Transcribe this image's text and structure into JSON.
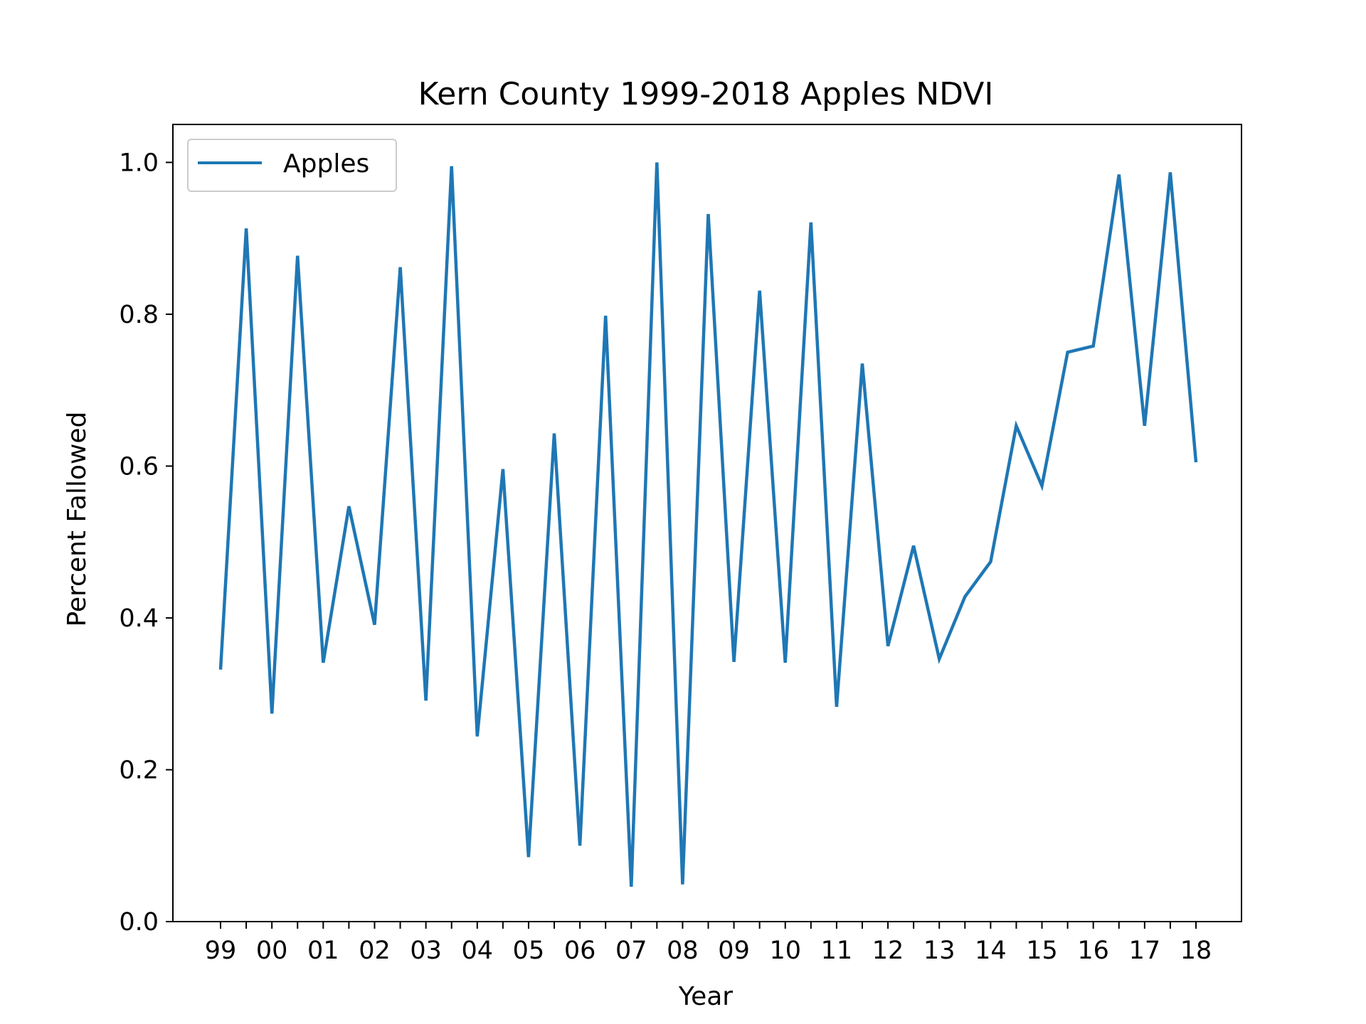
{
  "chart_data": {
    "type": "line",
    "title": "Kern County 1999-2018 Apples NDVI",
    "xlabel": "Year",
    "ylabel": "Percent Fallowed",
    "categories": [
      "99",
      "00",
      "01",
      "02",
      "03",
      "04",
      "05",
      "06",
      "07",
      "08",
      "09",
      "10",
      "11",
      "12",
      "13",
      "14",
      "15",
      "16",
      "17",
      "18"
    ],
    "ylim": [
      0,
      1.05
    ],
    "yticks": [
      "0.0",
      "0.2",
      "0.4",
      "0.6",
      "0.8",
      "1.0"
    ],
    "ytick_values": [
      0,
      0.2,
      0.4,
      0.6,
      0.8,
      1.0
    ],
    "legend": {
      "position": "top-left",
      "entries": [
        "Apples"
      ]
    },
    "grid": false,
    "series": [
      {
        "name": "Apples",
        "color": "#1f77b4",
        "x": [
          99,
          99.5,
          2000,
          2000.5,
          2001,
          2001.5,
          2002,
          2002.5,
          2003,
          2003.5,
          2004,
          2004.5,
          2005,
          2005.5,
          2006,
          2006.5,
          2007,
          2007.5,
          2008,
          2008.5,
          2009,
          2009.5,
          2010,
          2010.5,
          2011,
          2011.5,
          2012,
          2012.5,
          2013,
          2013.5,
          2014,
          2014.5,
          2015,
          2015.5,
          2016,
          2016.5,
          2017,
          2017.5,
          2018
        ],
        "values": [
          0.332,
          0.913,
          0.274,
          0.877,
          0.341,
          0.547,
          0.391,
          0.862,
          0.291,
          0.995,
          0.244,
          0.596,
          0.085,
          0.643,
          0.1,
          0.798,
          0.046,
          1.0,
          0.049,
          0.932,
          0.342,
          0.831,
          0.341,
          0.921,
          0.283,
          0.735,
          0.363,
          0.495,
          0.346,
          0.428,
          0.474,
          0.653,
          0.574,
          0.75,
          0.758,
          0.984,
          0.653,
          0.987,
          0.605
        ]
      }
    ]
  }
}
